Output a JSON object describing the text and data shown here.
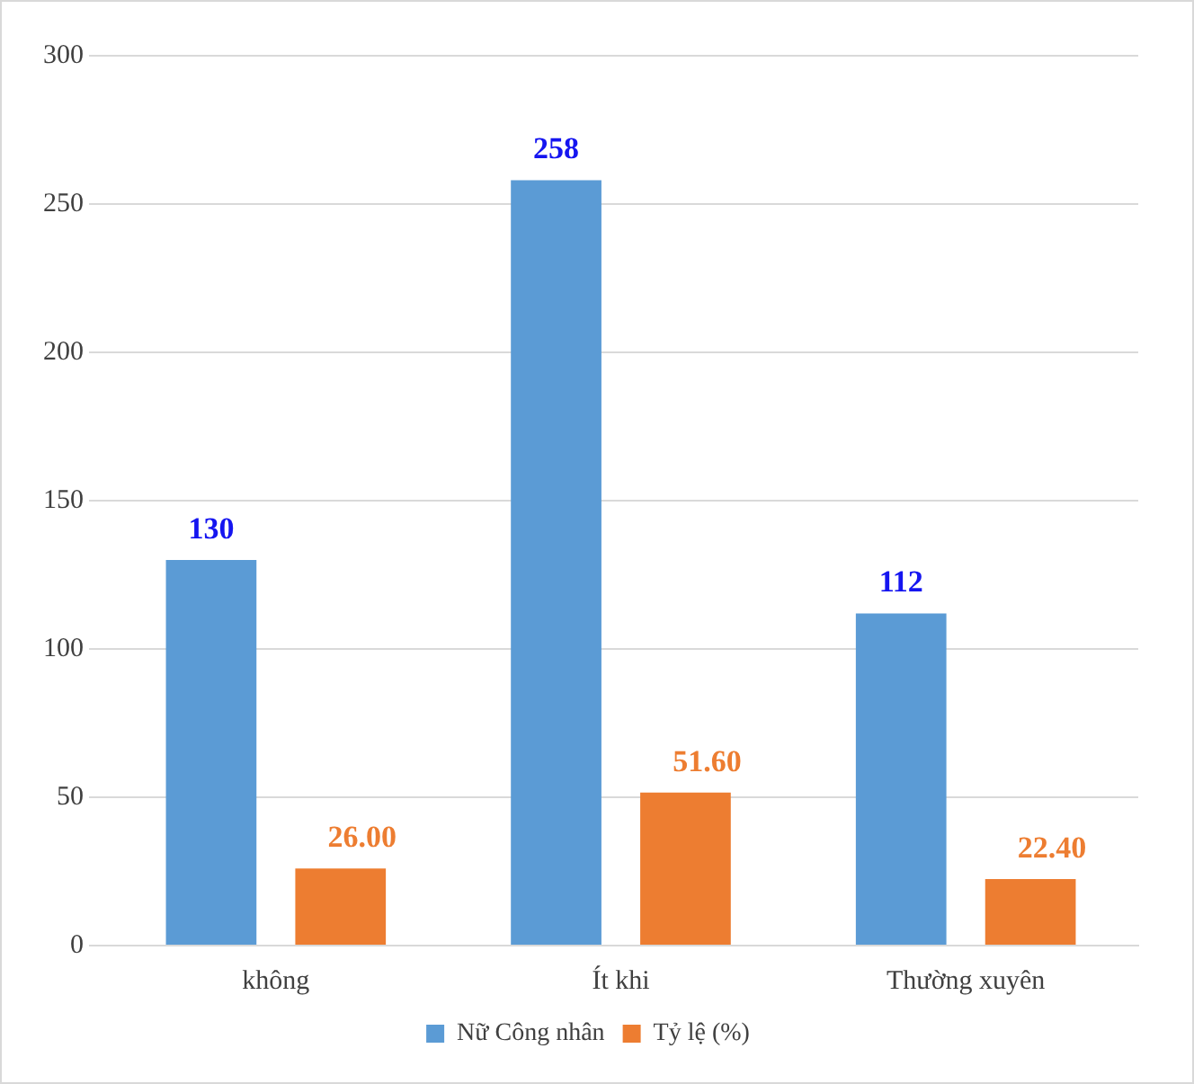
{
  "chart_data": {
    "type": "bar",
    "categories": [
      "không",
      "Ít khi",
      "Thường xuyên"
    ],
    "series": [
      {
        "name": "Nữ Công nhân",
        "color": "#5b9bd5",
        "values": [
          130,
          258,
          112
        ],
        "value_labels": [
          "130",
          "258",
          "112"
        ]
      },
      {
        "name": "Tỷ lệ (%)",
        "color": "#ed7d31",
        "values": [
          26.0,
          51.6,
          22.4
        ],
        "value_labels": [
          "26.00",
          "51.60",
          "22.40"
        ]
      }
    ],
    "ylim": [
      0,
      300
    ],
    "yticks": [
      0,
      50,
      100,
      150,
      200,
      250,
      300
    ],
    "grid": "y",
    "legend": "bottom"
  }
}
